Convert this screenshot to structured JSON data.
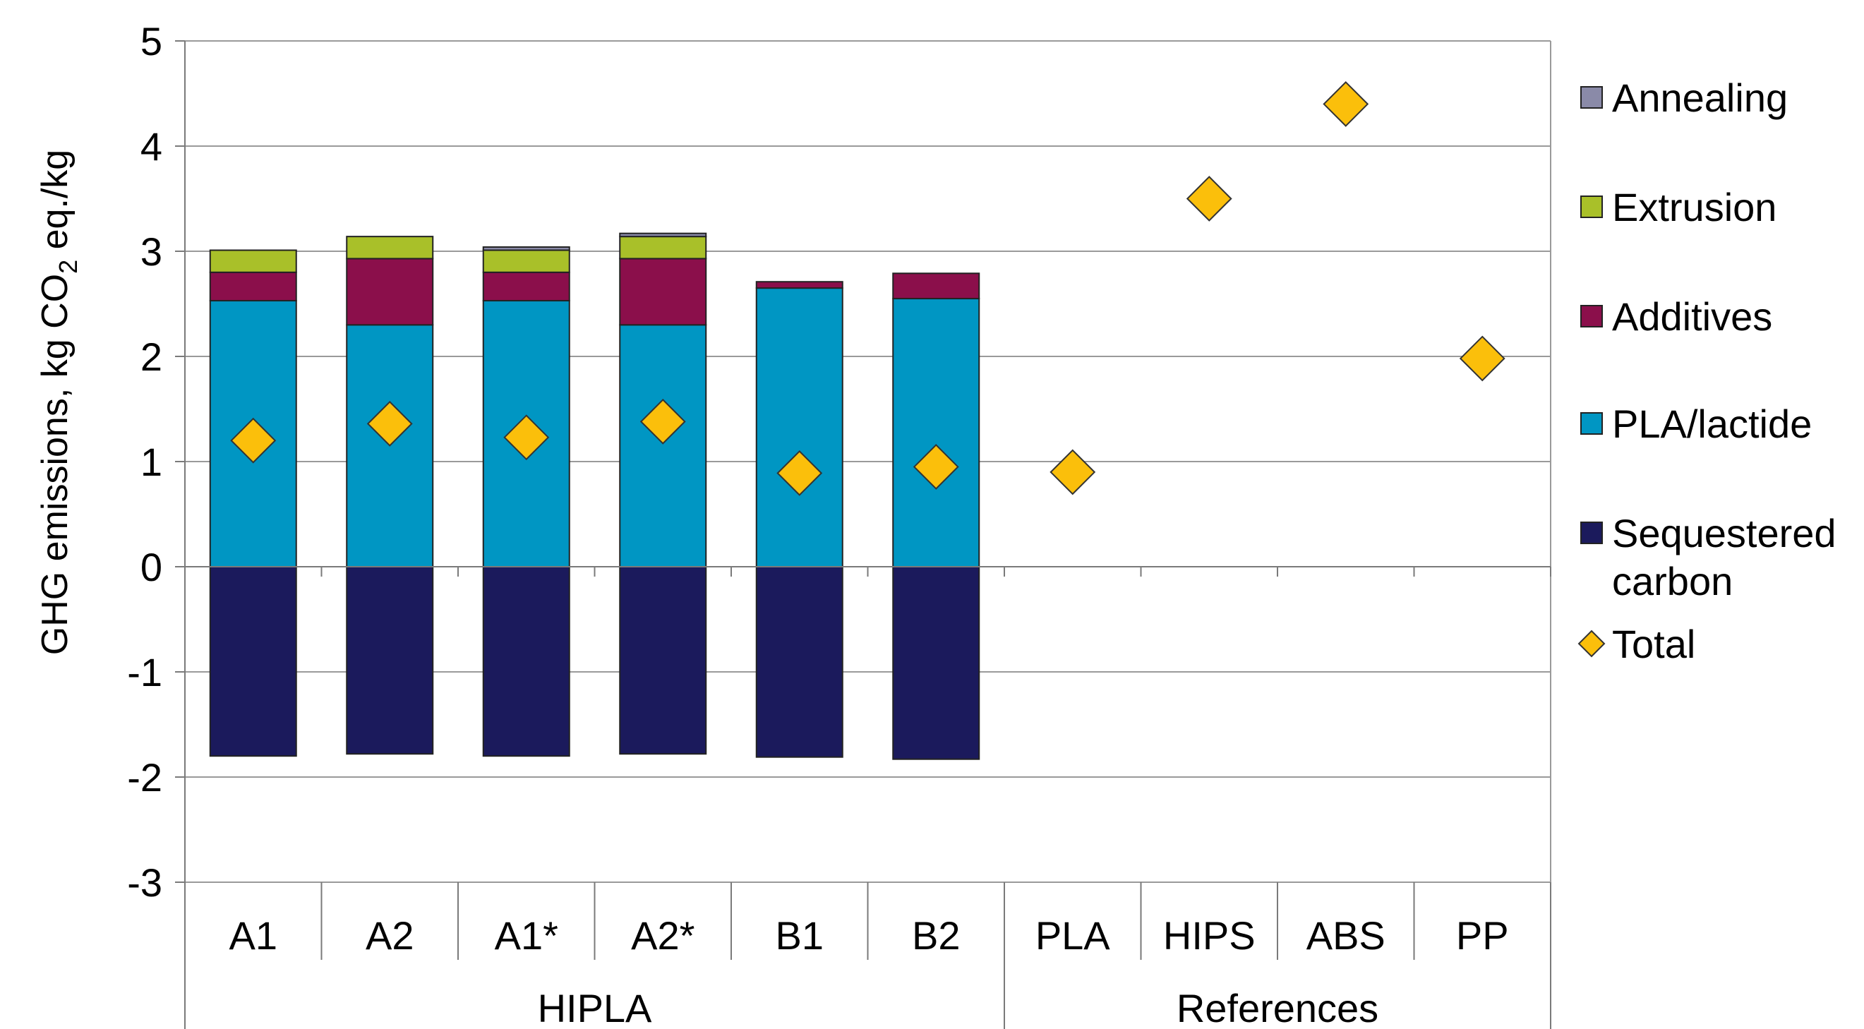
{
  "chart_data": {
    "type": "bar",
    "stacked": true,
    "ylabel_parts": [
      "GHG emissions, kg CO",
      "2",
      " eq./kg"
    ],
    "ylim": [
      -3,
      5
    ],
    "yticks": [
      5,
      4,
      3,
      2,
      1,
      0,
      -1,
      -2,
      -3
    ],
    "ytick_labels": [
      "5",
      "4",
      "3",
      "2",
      "1",
      "0",
      "-1",
      "-2",
      "-3"
    ],
    "grid": true,
    "legend_position": "right",
    "categories": [
      "A1",
      "A2",
      "A1*",
      "A2*",
      "B1",
      "B2",
      "PLA",
      "HIPS",
      "ABS",
      "PP"
    ],
    "groups": [
      {
        "label": "HIPLA",
        "start": 0,
        "end": 5
      },
      {
        "label": "References",
        "start": 6,
        "end": 9
      }
    ],
    "series": [
      {
        "name": "Sequestered carbon",
        "name_lines": [
          "Sequestered",
          "carbon"
        ],
        "color": "#1b1a5c",
        "values": [
          -1.8,
          -1.78,
          -1.8,
          -1.78,
          -1.81,
          -1.83,
          null,
          null,
          null,
          null
        ]
      },
      {
        "name": "PLA/lactide",
        "name_lines": [
          "PLA/lactide"
        ],
        "color": "#0096c3",
        "values": [
          2.53,
          2.3,
          2.53,
          2.3,
          2.65,
          2.55,
          null,
          null,
          null,
          null
        ]
      },
      {
        "name": "Additives",
        "name_lines": [
          "Additives"
        ],
        "color": "#8b0f4b",
        "values": [
          0.27,
          0.63,
          0.27,
          0.63,
          0.06,
          0.24,
          null,
          null,
          null,
          null
        ]
      },
      {
        "name": "Extrusion",
        "name_lines": [
          "Extrusion"
        ],
        "color": "#a9c029",
        "values": [
          0.21,
          0.21,
          0.21,
          0.21,
          null,
          null,
          null,
          null,
          null,
          null
        ]
      },
      {
        "name": "Annealing",
        "name_lines": [
          "Annealing"
        ],
        "color": "#8a8aa8",
        "values": [
          null,
          null,
          0.03,
          0.03,
          null,
          null,
          null,
          null,
          null,
          null
        ]
      }
    ],
    "total": {
      "name": "Total",
      "color": "#fbbf0b",
      "values": [
        1.2,
        1.36,
        1.23,
        1.38,
        0.89,
        0.95,
        0.9,
        3.5,
        4.4,
        1.98
      ]
    }
  }
}
